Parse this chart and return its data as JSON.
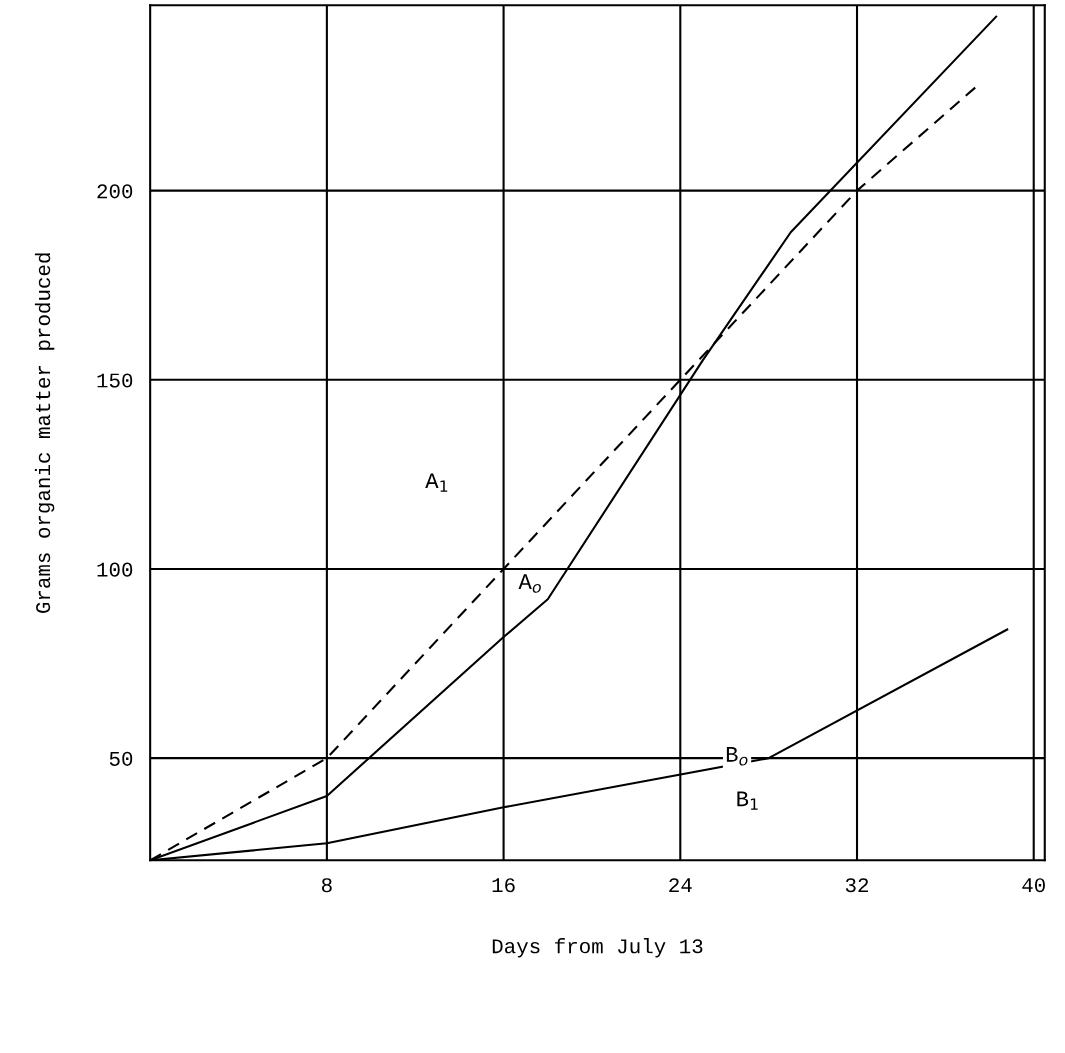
{
  "chart_data": {
    "type": "line",
    "xlabel": "Days from July 13",
    "ylabel": "Grams organic matter produced",
    "xlim": [
      0,
      40.5
    ],
    "ylim": [
      23,
      249
    ],
    "xticks": [
      8,
      16,
      24,
      32,
      40
    ],
    "yticks": [
      50,
      100,
      150,
      200
    ],
    "grid": true,
    "marker": "none",
    "series": [
      {
        "x": [
          0,
          8,
          16,
          18,
          25,
          29,
          38.3
        ],
        "values": [
          23,
          40,
          82,
          92,
          155,
          189,
          246
        ],
        "color": "#000000",
        "line_style": "solid"
      },
      {
        "x": [
          0,
          8,
          16,
          24,
          32,
          37.5
        ],
        "values": [
          23,
          50,
          100,
          150,
          200,
          228
        ],
        "color": "#000000",
        "line_style": "dashed"
      },
      {
        "x": [
          0,
          8,
          16,
          28,
          38.8
        ],
        "values": [
          23,
          27.5,
          37,
          50,
          84
        ],
        "color": "#000000",
        "line_style": "solid"
      }
    ],
    "annotations": [
      "A$_{1}$",
      "A$_{o}$",
      "B$_{o}$",
      "B$_{1}$"
    ]
  }
}
